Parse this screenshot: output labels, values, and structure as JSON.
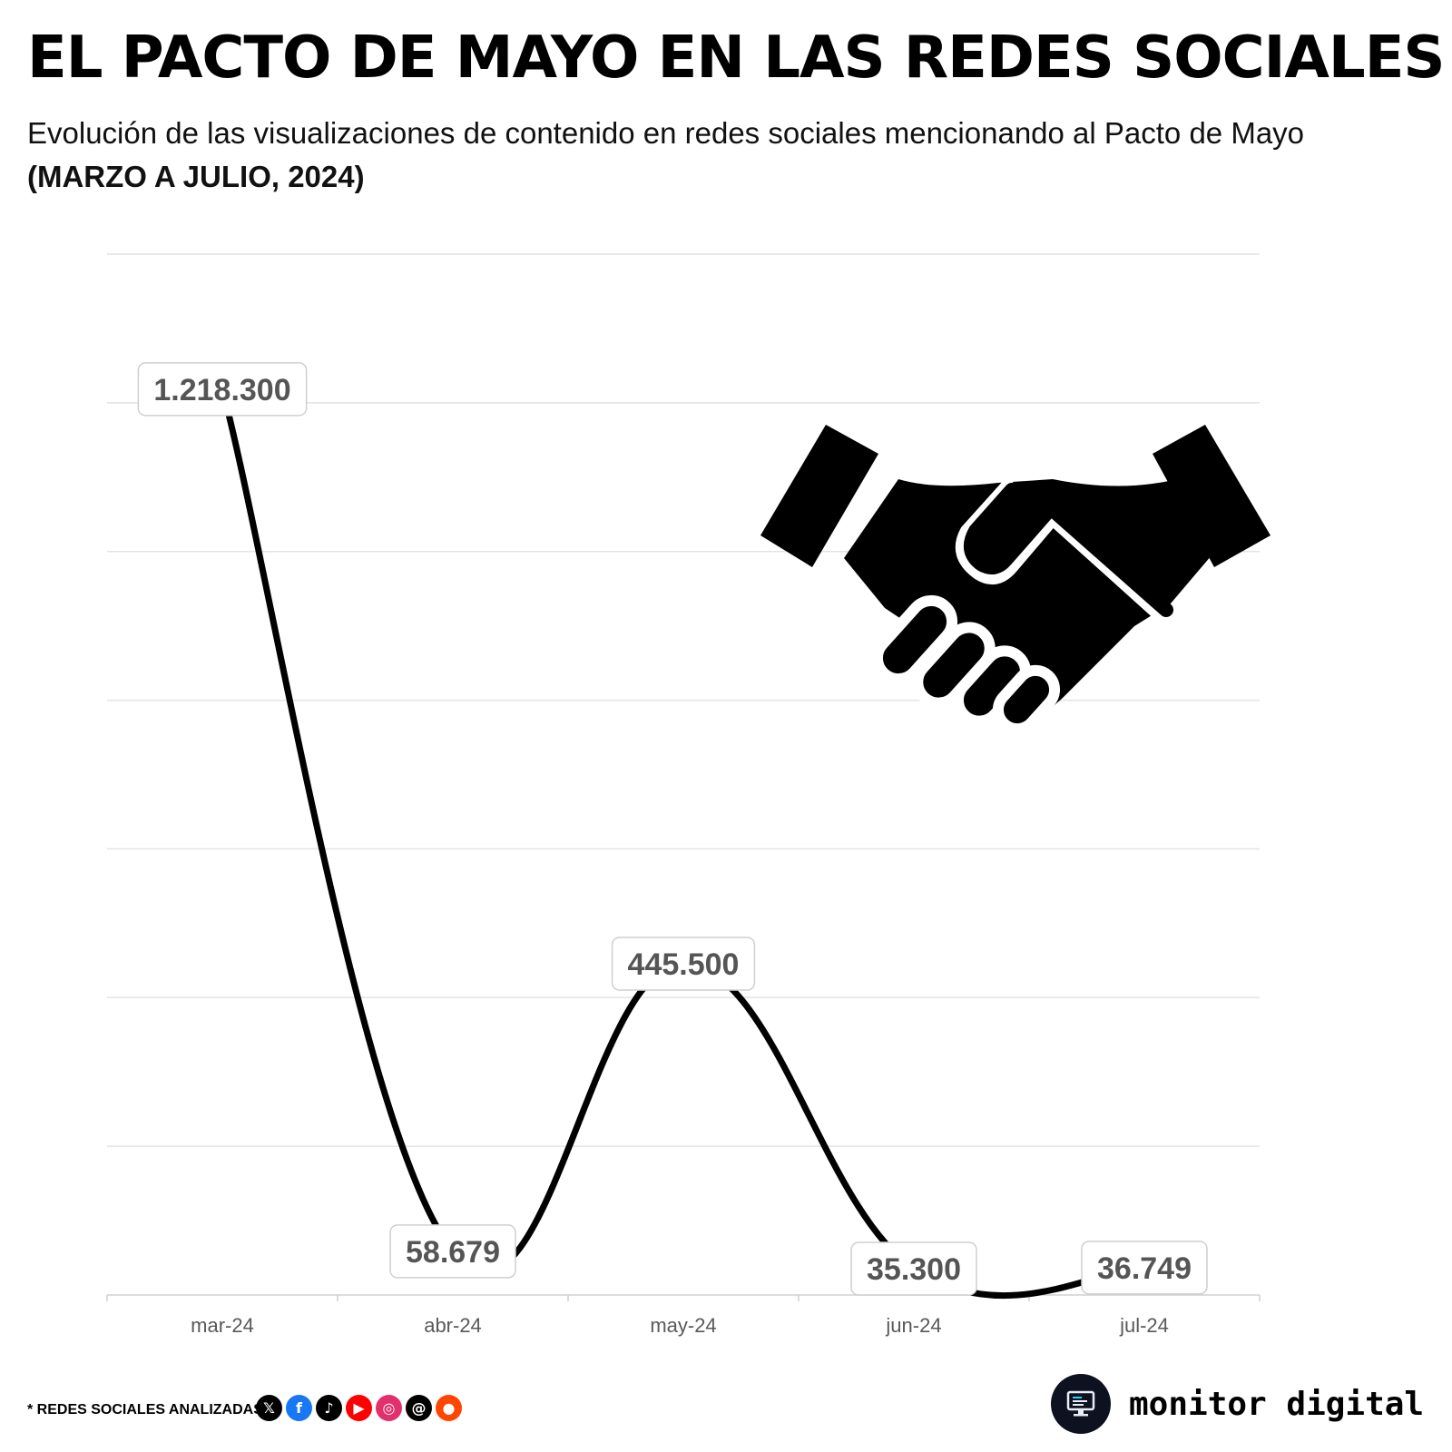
{
  "header": {
    "title": "EL PACTO DE MAYO EN LAS REDES SOCIALES",
    "subtitle": "Evolución de las visualizaciones de contenido en redes sociales mencionando al Pacto de Mayo",
    "period": "(MARZO A JULIO, 2024)"
  },
  "chart_data": {
    "type": "line",
    "categories": [
      "mar-24",
      "abr-24",
      "may-24",
      "jun-24",
      "jul-24"
    ],
    "values": [
      1218300,
      58679,
      445500,
      35300,
      36749
    ],
    "data_labels": [
      "1.218.300",
      "58.679",
      "445.500",
      "35.300",
      "36.749"
    ],
    "ylim": [
      0,
      1400000
    ],
    "grid": true,
    "line_color": "#000000",
    "smooth": true,
    "decoration": "handshake-icon"
  },
  "footer": {
    "note": "* REDES SOCIALES ANALIZADAS",
    "networks": [
      {
        "name": "x-icon",
        "glyph": "𝕏",
        "color": "#000000"
      },
      {
        "name": "facebook-icon",
        "glyph": "f",
        "color": "#1877f2"
      },
      {
        "name": "tiktok-icon",
        "glyph": "♪",
        "color": "#000000"
      },
      {
        "name": "youtube-icon",
        "glyph": "▶",
        "color": "#ff0000"
      },
      {
        "name": "instagram-icon",
        "glyph": "◎",
        "color": "#e1306c"
      },
      {
        "name": "threads-icon",
        "glyph": "@",
        "color": "#000000"
      },
      {
        "name": "reddit-icon",
        "glyph": "●",
        "color": "#ff4500"
      }
    ],
    "brand": "monitor digital"
  }
}
